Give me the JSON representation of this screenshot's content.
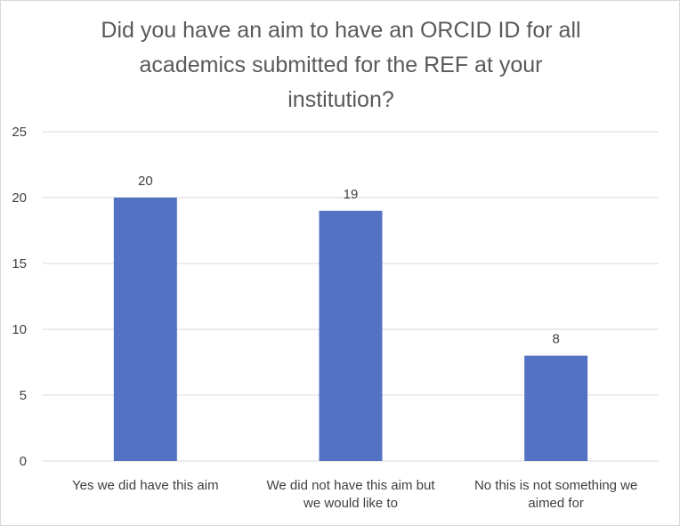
{
  "chart_data": {
    "type": "bar",
    "title_lines": [
      "Did you have an aim to have an ORCID ID for all",
      "academics submitted for the REF at your",
      "institution?"
    ],
    "categories": [
      [
        "Yes we did have this aim"
      ],
      [
        "We did not have this aim but",
        "we would like to"
      ],
      [
        "No this is not something we",
        "aimed for"
      ]
    ],
    "values": [
      20,
      19,
      8
    ],
    "data_labels": [
      "20",
      "19",
      "8"
    ],
    "y_ticks": [
      "0",
      "5",
      "10",
      "15",
      "20",
      "25"
    ],
    "ylim": [
      0,
      25
    ],
    "grid": true,
    "bar_color": "#5472C4",
    "grid_color": "#d9d9d9",
    "text_color": "#404040"
  }
}
